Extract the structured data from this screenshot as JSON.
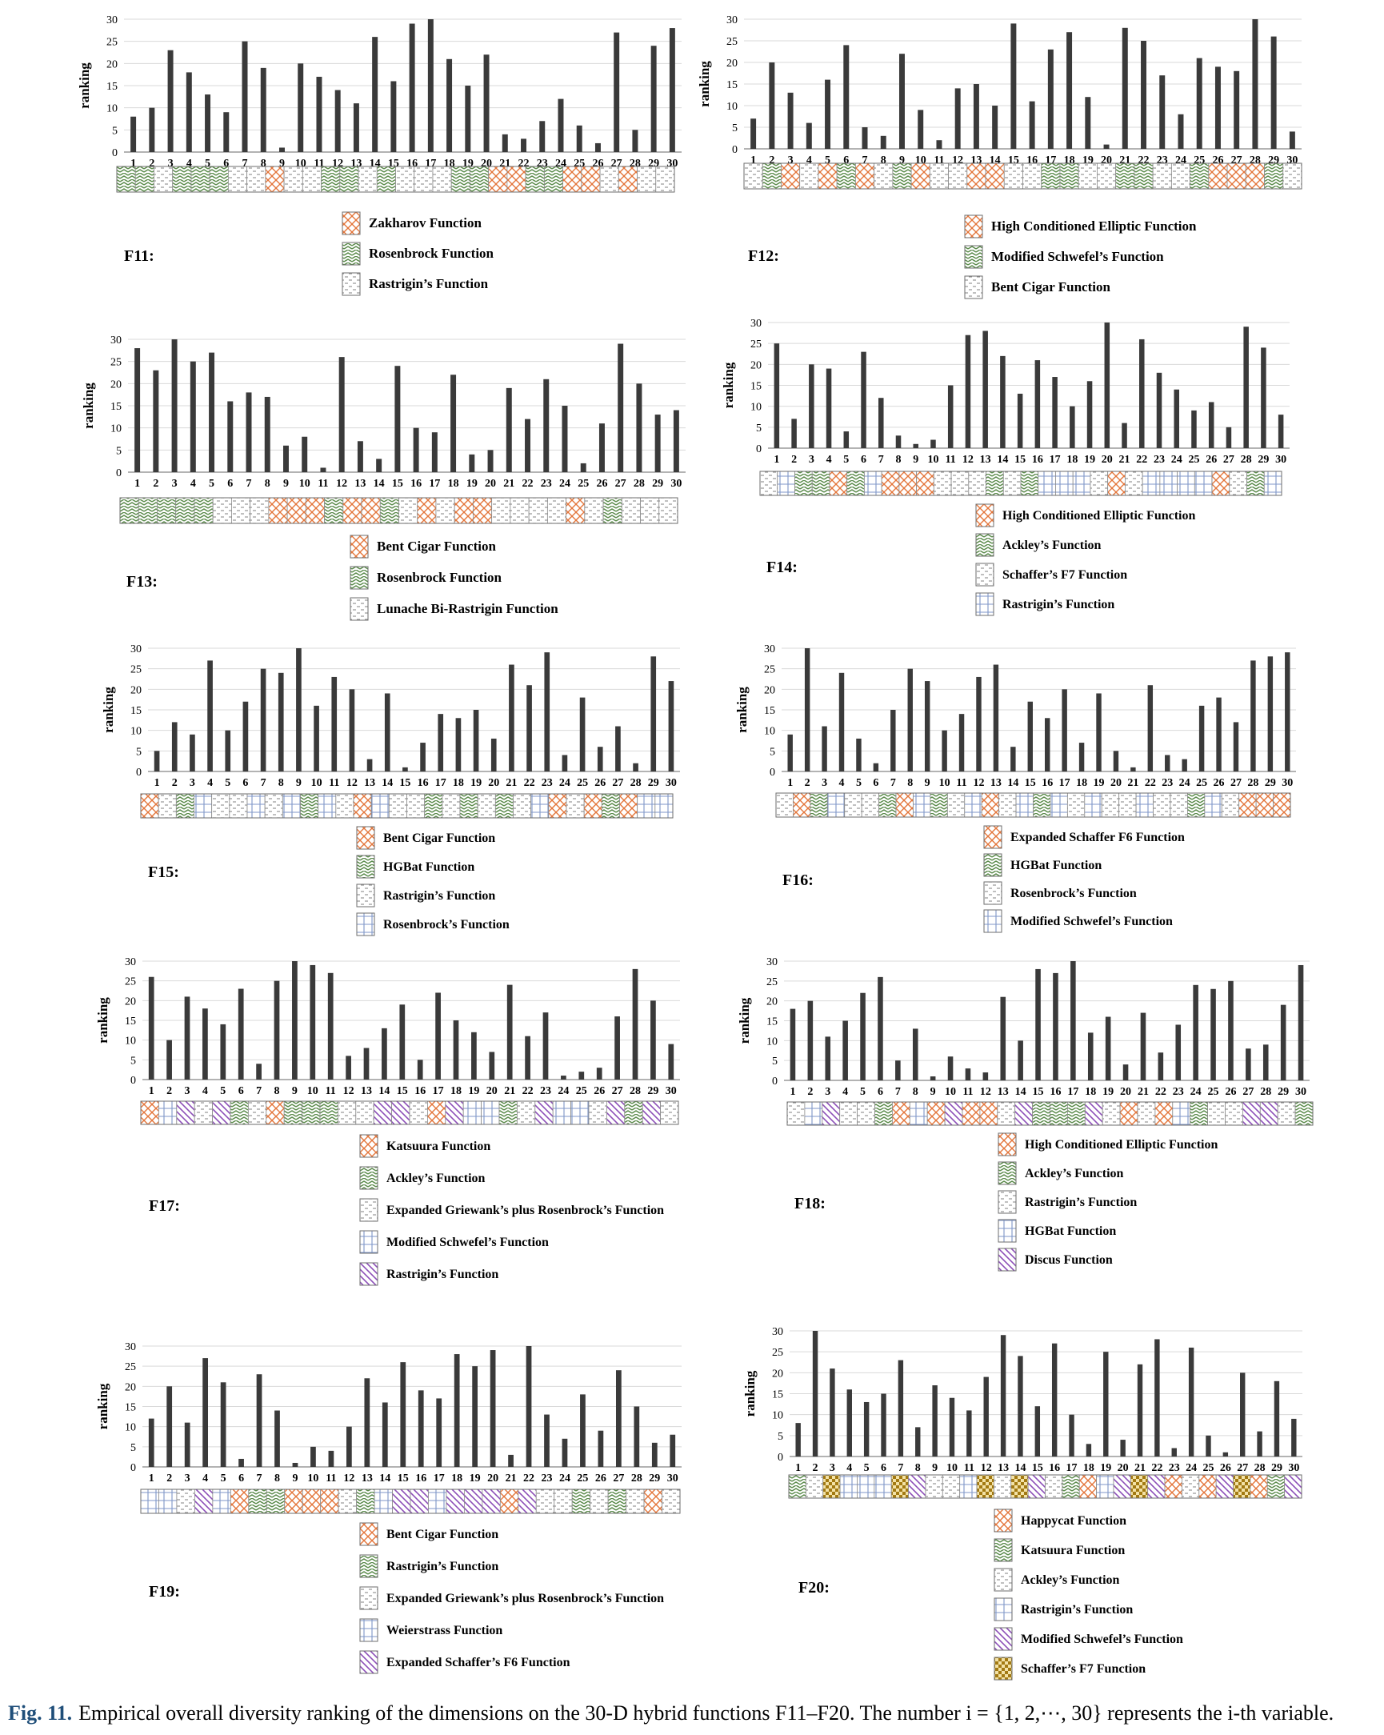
{
  "figure": {
    "caption_label": "Fig. 11.",
    "caption_text": "Empirical overall diversity ranking of the dimensions on the 30-D hybrid functions F11–F20. The number i = {1, 2,⋯, 30} represents the i-th variable."
  },
  "colors": {
    "bar": "#3a3a3a",
    "grid": "#d9d9d9",
    "orange": "#e3753a",
    "green": "#5a8a4a",
    "gray": "#9a9a9a",
    "blue": "#7f96c8",
    "purple": "#8c4fb8",
    "gold": "#c99a1a"
  },
  "chart_data": [
    {
      "type": "bar",
      "id": "F11",
      "title": "F11:",
      "ylabel": "ranking",
      "ylim": [
        0,
        30
      ],
      "yticks": [
        0,
        5,
        10,
        15,
        20,
        25,
        30
      ],
      "categories": [
        "1",
        "2",
        "3",
        "4",
        "5",
        "6",
        "7",
        "8",
        "9",
        "10",
        "11",
        "12",
        "13",
        "14",
        "15",
        "16",
        "17",
        "18",
        "19",
        "20",
        "21",
        "22",
        "23",
        "24",
        "25",
        "26",
        "27",
        "28",
        "29",
        "30"
      ],
      "values": [
        8,
        10,
        23,
        18,
        13,
        9,
        25,
        19,
        1,
        20,
        17,
        14,
        11,
        26,
        16,
        29,
        30,
        21,
        15,
        22,
        4,
        3,
        7,
        12,
        6,
        2,
        27,
        5,
        24,
        28
      ],
      "groups": [
        1,
        1,
        2,
        1,
        1,
        1,
        2,
        2,
        0,
        2,
        2,
        1,
        1,
        2,
        1,
        2,
        2,
        2,
        1,
        1,
        0,
        0,
        1,
        1,
        0,
        0,
        2,
        0,
        2,
        2
      ],
      "legend": [
        {
          "label": "Zakharov Function",
          "pattern": "orange"
        },
        {
          "label": "Rosenbrock Function",
          "pattern": "green"
        },
        {
          "label": "Rastrigin’s Function",
          "pattern": "gray"
        }
      ]
    },
    {
      "type": "bar",
      "id": "F12",
      "title": "F12:",
      "ylabel": "ranking",
      "ylim": [
        0,
        30
      ],
      "yticks": [
        0,
        5,
        10,
        15,
        20,
        25,
        30
      ],
      "categories": [
        "1",
        "2",
        "3",
        "4",
        "5",
        "6",
        "7",
        "8",
        "9",
        "10",
        "11",
        "12",
        "13",
        "14",
        "15",
        "16",
        "17",
        "18",
        "19",
        "20",
        "21",
        "22",
        "23",
        "24",
        "25",
        "26",
        "27",
        "28",
        "29",
        "30"
      ],
      "values": [
        7,
        20,
        13,
        6,
        16,
        24,
        5,
        3,
        22,
        9,
        2,
        14,
        15,
        10,
        29,
        11,
        23,
        27,
        12,
        1,
        28,
        25,
        17,
        8,
        21,
        19,
        18,
        30,
        26,
        4
      ],
      "groups": [
        2,
        1,
        0,
        2,
        0,
        1,
        0,
        2,
        1,
        0,
        2,
        2,
        0,
        0,
        2,
        2,
        1,
        1,
        2,
        2,
        1,
        1,
        2,
        2,
        1,
        0,
        0,
        0,
        1,
        2
      ],
      "legend": [
        {
          "label": "High Conditioned Elliptic Function",
          "pattern": "orange"
        },
        {
          "label": "Modified Schwefel’s Function",
          "pattern": "green"
        },
        {
          "label": "Bent Cigar Function",
          "pattern": "gray"
        }
      ]
    },
    {
      "type": "bar",
      "id": "F13",
      "title": "F13:",
      "ylabel": "ranking",
      "ylim": [
        0,
        30
      ],
      "yticks": [
        0,
        5,
        10,
        15,
        20,
        25,
        30
      ],
      "categories": [
        "1",
        "2",
        "3",
        "4",
        "5",
        "6",
        "7",
        "8",
        "9",
        "10",
        "11",
        "12",
        "13",
        "14",
        "15",
        "16",
        "17",
        "18",
        "19",
        "20",
        "21",
        "22",
        "23",
        "24",
        "25",
        "26",
        "27",
        "28",
        "29",
        "30"
      ],
      "values": [
        28,
        23,
        30,
        25,
        27,
        16,
        18,
        17,
        6,
        8,
        1,
        26,
        7,
        3,
        24,
        10,
        9,
        22,
        4,
        5,
        19,
        12,
        21,
        15,
        2,
        11,
        29,
        20,
        13,
        14
      ],
      "groups": [
        1,
        1,
        1,
        1,
        1,
        2,
        2,
        2,
        0,
        0,
        0,
        1,
        0,
        0,
        1,
        2,
        0,
        2,
        0,
        0,
        2,
        2,
        2,
        2,
        0,
        2,
        1,
        2,
        2,
        2
      ],
      "legend": [
        {
          "label": "Bent Cigar Function",
          "pattern": "orange"
        },
        {
          "label": "Rosenbrock Function",
          "pattern": "green"
        },
        {
          "label": "Lunache Bi-Rastrigin Function",
          "pattern": "gray"
        }
      ]
    },
    {
      "type": "bar",
      "id": "F14",
      "title": "F14:",
      "ylabel": "ranking",
      "ylim": [
        0,
        30
      ],
      "yticks": [
        0,
        5,
        10,
        15,
        20,
        25,
        30
      ],
      "categories": [
        "1",
        "2",
        "3",
        "4",
        "5",
        "6",
        "7",
        "8",
        "9",
        "10",
        "11",
        "12",
        "13",
        "14",
        "15",
        "16",
        "17",
        "18",
        "19",
        "20",
        "21",
        "22",
        "23",
        "24",
        "25",
        "26",
        "27",
        "28",
        "29",
        "30"
      ],
      "values": [
        25,
        7,
        20,
        19,
        4,
        23,
        12,
        3,
        1,
        2,
        15,
        27,
        28,
        22,
        13,
        21,
        17,
        10,
        16,
        30,
        6,
        26,
        18,
        14,
        9,
        11,
        5,
        29,
        24,
        8
      ],
      "groups": [
        2,
        3,
        1,
        1,
        0,
        1,
        3,
        0,
        0,
        0,
        2,
        2,
        2,
        1,
        2,
        1,
        3,
        3,
        3,
        2,
        0,
        2,
        3,
        3,
        3,
        3,
        0,
        2,
        1,
        3
      ],
      "legend": [
        {
          "label": "High Conditioned Elliptic Function",
          "pattern": "orange"
        },
        {
          "label": "Ackley’s Function",
          "pattern": "green"
        },
        {
          "label": "Schaffer’s F7 Function",
          "pattern": "gray"
        },
        {
          "label": "Rastrigin’s Function",
          "pattern": "blue"
        }
      ]
    },
    {
      "type": "bar",
      "id": "F15",
      "title": "F15:",
      "ylabel": "ranking",
      "ylim": [
        0,
        30
      ],
      "yticks": [
        0,
        5,
        10,
        15,
        20,
        25,
        30
      ],
      "categories": [
        "1",
        "2",
        "3",
        "4",
        "5",
        "6",
        "7",
        "8",
        "9",
        "10",
        "11",
        "12",
        "13",
        "14",
        "15",
        "16",
        "17",
        "18",
        "19",
        "20",
        "21",
        "22",
        "23",
        "24",
        "25",
        "26",
        "27",
        "28",
        "29",
        "30"
      ],
      "values": [
        5,
        12,
        9,
        27,
        10,
        17,
        25,
        24,
        30,
        16,
        23,
        20,
        3,
        19,
        1,
        7,
        14,
        13,
        15,
        8,
        26,
        21,
        29,
        4,
        18,
        6,
        11,
        2,
        28,
        22
      ],
      "groups": [
        0,
        2,
        1,
        3,
        2,
        2,
        3,
        2,
        3,
        1,
        3,
        2,
        0,
        3,
        2,
        2,
        1,
        2,
        1,
        2,
        1,
        2,
        3,
        0,
        2,
        0,
        1,
        0,
        3,
        3
      ],
      "legend": [
        {
          "label": "Bent Cigar Function",
          "pattern": "orange"
        },
        {
          "label": "HGBat Function",
          "pattern": "green"
        },
        {
          "label": "Rastrigin’s Function",
          "pattern": "gray"
        },
        {
          "label": "Rosenbrock’s Function",
          "pattern": "blue"
        }
      ]
    },
    {
      "type": "bar",
      "id": "F16",
      "title": "F16:",
      "ylabel": "ranking",
      "ylim": [
        0,
        30
      ],
      "yticks": [
        0,
        5,
        10,
        15,
        20,
        25,
        30
      ],
      "categories": [
        "1",
        "2",
        "3",
        "4",
        "5",
        "6",
        "7",
        "8",
        "9",
        "10",
        "11",
        "12",
        "13",
        "14",
        "15",
        "16",
        "17",
        "18",
        "19",
        "20",
        "21",
        "22",
        "23",
        "24",
        "25",
        "26",
        "27",
        "28",
        "29",
        "30"
      ],
      "values": [
        9,
        30,
        11,
        24,
        8,
        2,
        15,
        25,
        22,
        10,
        14,
        23,
        26,
        6,
        17,
        13,
        20,
        7,
        19,
        5,
        1,
        21,
        4,
        3,
        16,
        18,
        12,
        27,
        28,
        29
      ],
      "groups": [
        2,
        0,
        1,
        3,
        2,
        2,
        1,
        0,
        3,
        1,
        2,
        3,
        0,
        2,
        3,
        1,
        3,
        2,
        3,
        2,
        2,
        3,
        2,
        2,
        1,
        3,
        2,
        0,
        0,
        0
      ],
      "legend": [
        {
          "label": "Expanded Schaffer F6 Function",
          "pattern": "orange"
        },
        {
          "label": "HGBat Function",
          "pattern": "green"
        },
        {
          "label": "Rosenbrock’s Function",
          "pattern": "gray"
        },
        {
          "label": "Modified Schwefel’s Function",
          "pattern": "blue"
        }
      ]
    },
    {
      "type": "bar",
      "id": "F17",
      "title": "F17:",
      "ylabel": "ranking",
      "ylim": [
        0,
        30
      ],
      "yticks": [
        0,
        5,
        10,
        15,
        20,
        25,
        30
      ],
      "categories": [
        "1",
        "2",
        "3",
        "4",
        "5",
        "6",
        "7",
        "8",
        "9",
        "10",
        "11",
        "12",
        "13",
        "14",
        "15",
        "16",
        "17",
        "18",
        "19",
        "20",
        "21",
        "22",
        "23",
        "24",
        "25",
        "26",
        "27",
        "28",
        "29",
        "30"
      ],
      "values": [
        26,
        10,
        21,
        18,
        14,
        23,
        4,
        25,
        30,
        29,
        27,
        6,
        8,
        13,
        19,
        5,
        22,
        15,
        12,
        7,
        24,
        11,
        17,
        1,
        2,
        3,
        16,
        28,
        20,
        9
      ],
      "groups": [
        0,
        3,
        4,
        2,
        4,
        1,
        2,
        0,
        1,
        1,
        1,
        2,
        2,
        4,
        4,
        2,
        0,
        4,
        3,
        3,
        1,
        2,
        4,
        3,
        3,
        2,
        4,
        1,
        4,
        2
      ],
      "legend": [
        {
          "label": "Katsuura Function",
          "pattern": "orange"
        },
        {
          "label": "Ackley’s Function",
          "pattern": "green"
        },
        {
          "label": "Expanded Griewank’s plus Rosenbrock’s Function",
          "pattern": "gray"
        },
        {
          "label": "Modified Schwefel’s Function",
          "pattern": "blue"
        },
        {
          "label": "Rastrigin’s Function",
          "pattern": "purple"
        }
      ]
    },
    {
      "type": "bar",
      "id": "F18",
      "title": "F18:",
      "ylabel": "ranking",
      "ylim": [
        0,
        30
      ],
      "yticks": [
        0,
        5,
        10,
        15,
        20,
        25,
        30
      ],
      "categories": [
        "1",
        "2",
        "3",
        "4",
        "5",
        "6",
        "7",
        "8",
        "9",
        "10",
        "11",
        "12",
        "13",
        "14",
        "15",
        "16",
        "17",
        "18",
        "19",
        "20",
        "21",
        "22",
        "23",
        "24",
        "25",
        "26",
        "27",
        "28",
        "29",
        "30"
      ],
      "values": [
        18,
        20,
        11,
        15,
        22,
        26,
        5,
        13,
        1,
        6,
        3,
        2,
        21,
        10,
        28,
        27,
        30,
        12,
        16,
        4,
        17,
        7,
        14,
        24,
        23,
        25,
        8,
        9,
        19,
        29
      ],
      "groups": [
        2,
        3,
        4,
        2,
        2,
        1,
        0,
        3,
        0,
        4,
        0,
        0,
        2,
        4,
        1,
        1,
        1,
        4,
        2,
        0,
        2,
        0,
        3,
        1,
        2,
        2,
        4,
        4,
        2,
        1
      ],
      "legend": [
        {
          "label": "High Conditioned Elliptic Function",
          "pattern": "orange"
        },
        {
          "label": "Ackley’s Function",
          "pattern": "green"
        },
        {
          "label": "Rastrigin’s Function",
          "pattern": "gray"
        },
        {
          "label": "HGBat Function",
          "pattern": "blue"
        },
        {
          "label": "Discus Function",
          "pattern": "purple"
        }
      ]
    },
    {
      "type": "bar",
      "id": "F19",
      "title": "F19:",
      "ylabel": "ranking",
      "ylim": [
        0,
        30
      ],
      "yticks": [
        0,
        5,
        10,
        15,
        20,
        25,
        30
      ],
      "categories": [
        "1",
        "2",
        "3",
        "4",
        "5",
        "6",
        "7",
        "8",
        "9",
        "10",
        "11",
        "12",
        "13",
        "14",
        "15",
        "16",
        "17",
        "18",
        "19",
        "20",
        "21",
        "22",
        "23",
        "24",
        "25",
        "26",
        "27",
        "28",
        "29",
        "30"
      ],
      "values": [
        12,
        20,
        11,
        27,
        21,
        2,
        23,
        14,
        1,
        5,
        4,
        10,
        22,
        16,
        26,
        19,
        17,
        28,
        25,
        29,
        3,
        30,
        13,
        7,
        18,
        9,
        24,
        15,
        6,
        8
      ],
      "groups": [
        3,
        3,
        2,
        4,
        3,
        0,
        1,
        1,
        0,
        0,
        0,
        2,
        1,
        3,
        4,
        4,
        3,
        4,
        4,
        4,
        0,
        4,
        2,
        2,
        1,
        2,
        1,
        2,
        0,
        2
      ],
      "legend": [
        {
          "label": "Bent Cigar Function",
          "pattern": "orange"
        },
        {
          "label": "Rastrigin’s Function",
          "pattern": "green"
        },
        {
          "label": "Expanded Griewank’s plus Rosenbrock’s Function",
          "pattern": "gray"
        },
        {
          "label": "Weierstrass Function",
          "pattern": "blue"
        },
        {
          "label": "Expanded Schaffer’s F6 Function",
          "pattern": "purple"
        }
      ]
    },
    {
      "type": "bar",
      "id": "F20",
      "title": "F20:",
      "ylabel": "ranking",
      "ylim": [
        0,
        30
      ],
      "yticks": [
        0,
        5,
        10,
        15,
        20,
        25,
        30
      ],
      "categories": [
        "1",
        "2",
        "3",
        "4",
        "5",
        "6",
        "7",
        "8",
        "9",
        "10",
        "11",
        "12",
        "13",
        "14",
        "15",
        "16",
        "17",
        "18",
        "19",
        "20",
        "21",
        "22",
        "23",
        "24",
        "25",
        "26",
        "27",
        "28",
        "29",
        "30"
      ],
      "values": [
        8,
        30,
        21,
        16,
        13,
        15,
        23,
        7,
        17,
        14,
        11,
        19,
        29,
        24,
        12,
        27,
        10,
        3,
        25,
        4,
        22,
        28,
        2,
        26,
        5,
        1,
        20,
        6,
        18,
        9
      ],
      "groups": [
        1,
        2,
        5,
        3,
        3,
        3,
        5,
        4,
        2,
        2,
        3,
        5,
        2,
        5,
        4,
        2,
        1,
        0,
        3,
        4,
        5,
        4,
        0,
        2,
        0,
        4,
        5,
        0,
        1,
        4
      ],
      "legend": [
        {
          "label": "Happycat Function",
          "pattern": "orange"
        },
        {
          "label": "Katsuura Function",
          "pattern": "green"
        },
        {
          "label": "Ackley’s Function",
          "pattern": "gray"
        },
        {
          "label": "Rastrigin’s Function",
          "pattern": "blue"
        },
        {
          "label": "Modified Schwefel’s Function",
          "pattern": "purple"
        },
        {
          "label": "Schaffer’s F7 Function",
          "pattern": "gold"
        }
      ]
    }
  ]
}
